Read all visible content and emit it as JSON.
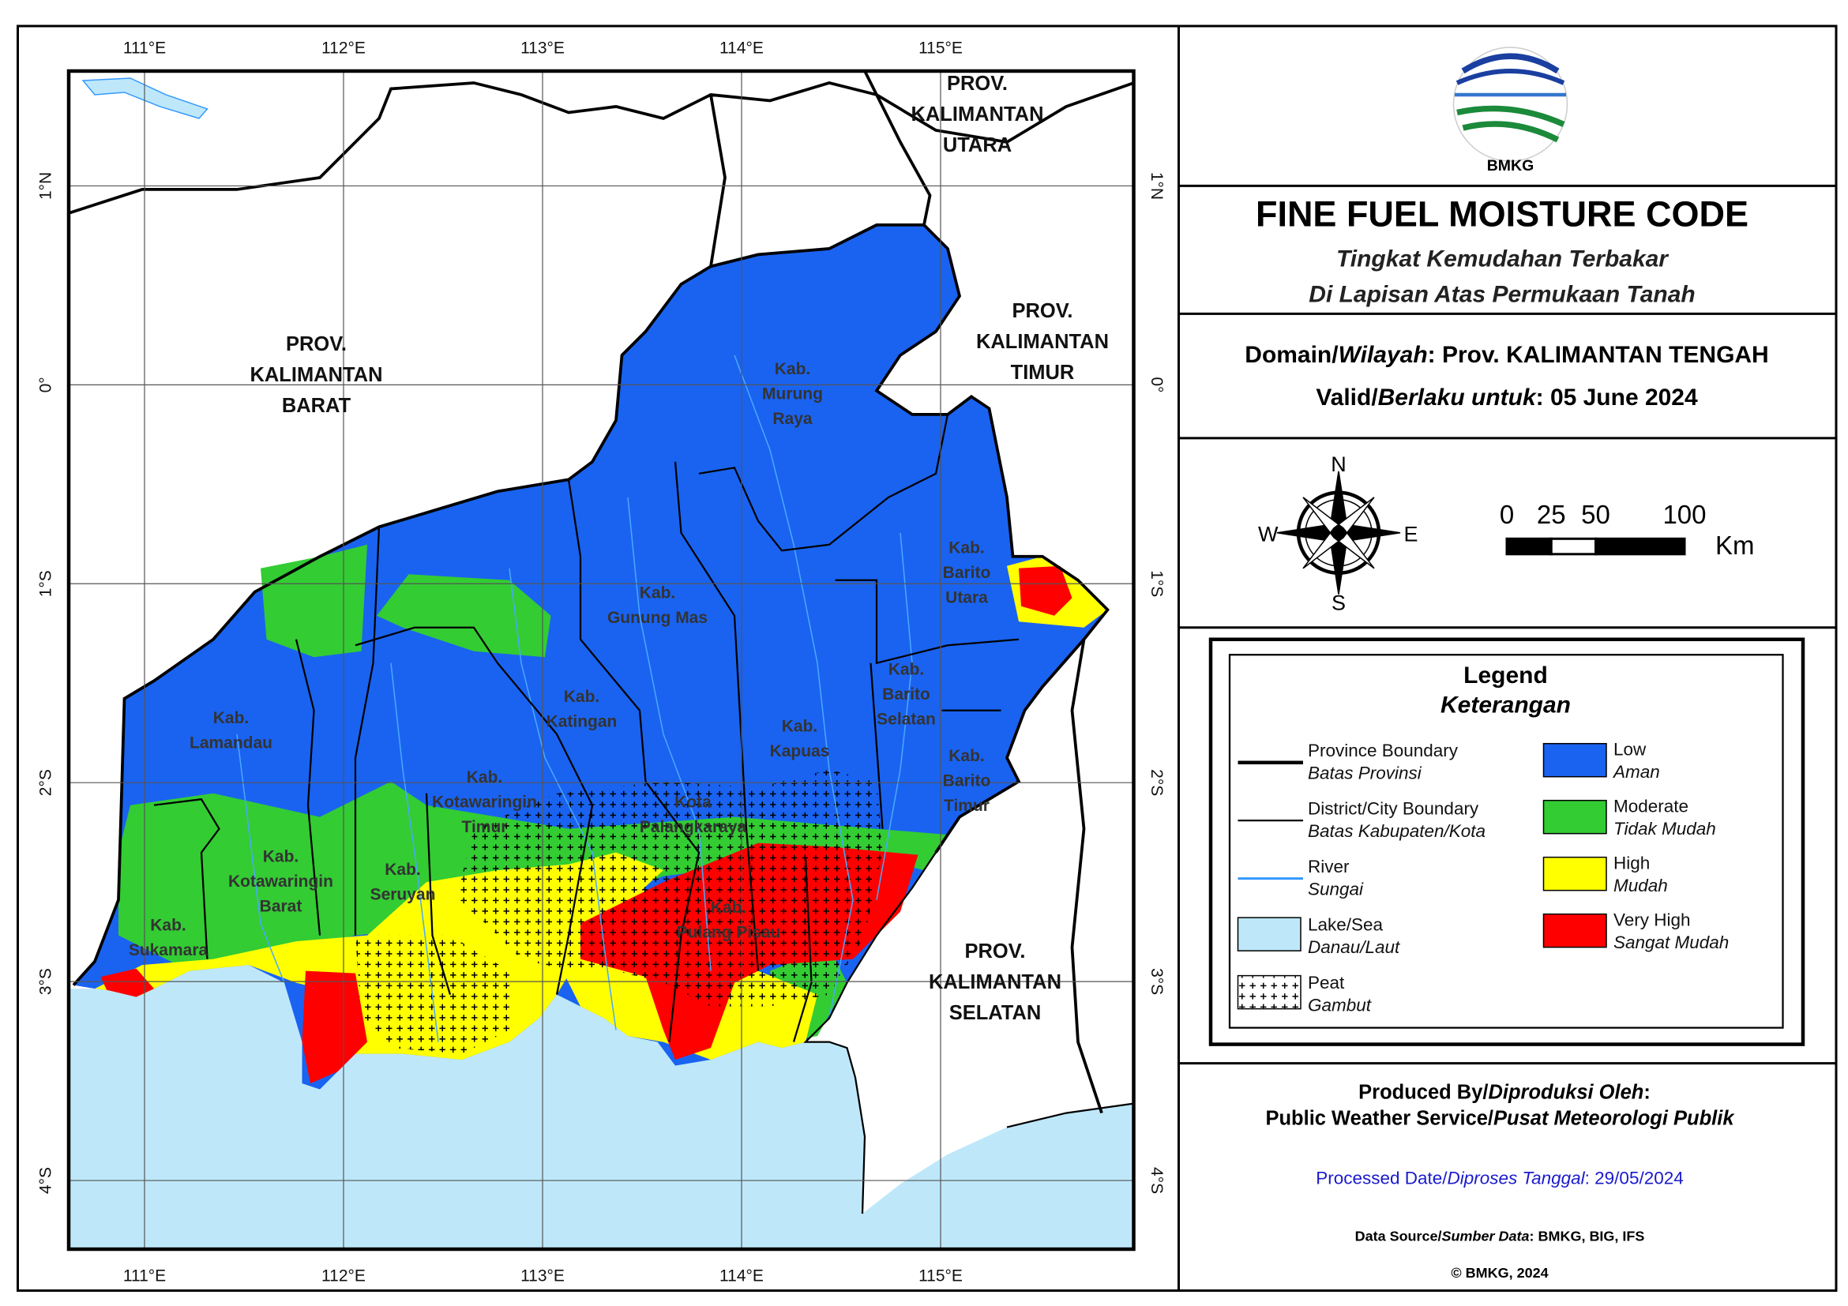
{
  "header": {
    "logo_text": "BMKG",
    "title": "FINE FUEL MOISTURE CODE",
    "subtitle_lines": [
      "Tingkat Kemudahan Terbakar",
      "Di Lapisan Atas Permukaan Tanah"
    ]
  },
  "domain": {
    "label": "Domain/",
    "label_italic": "Wilayah",
    "value": ": Prov. KALIMANTAN TENGAH"
  },
  "valid": {
    "label": "Valid/",
    "label_italic": "Berlaku untuk",
    "value": ": 05 June 2024"
  },
  "compass": {
    "n": "N",
    "e": "E",
    "s": "S",
    "w": "W"
  },
  "scale_bar": {
    "ticks": [
      0,
      25,
      50,
      100
    ],
    "unit": "Km"
  },
  "legend": {
    "title": "Legend",
    "subtitle": "Keterangan",
    "lines": [
      {
        "label": "Province Boundary",
        "label_id": "Batas Provinsi",
        "color": "#000000"
      },
      {
        "label": "District/City Boundary",
        "label_id": "Batas Kabupaten/Kota",
        "color": "#000000"
      },
      {
        "label": "River",
        "label_id": "Sungai",
        "color": "#3399ff"
      },
      {
        "label": "Lake/Sea",
        "label_id": "Danau/Laut",
        "color": "#bee8fa"
      },
      {
        "label": "Peat",
        "label_id": "Gambut",
        "color": "#ffffff"
      }
    ],
    "classes": [
      {
        "label": "Low",
        "label_id": "Aman",
        "color": "#1a63f0"
      },
      {
        "label": "Moderate",
        "label_id": "Tidak Mudah",
        "color": "#33cc33"
      },
      {
        "label": "High",
        "label_id": "Mudah",
        "color": "#ffff00"
      },
      {
        "label": "Very High",
        "label_id": "Sangat Mudah",
        "color": "#ff0000"
      }
    ]
  },
  "footer": {
    "produced_label": "Produced By/",
    "produced_label_italic": "Diproduksi Oleh",
    "produced_colon": ":",
    "producer": "Public Weather Service/",
    "producer_italic": "Pusat Meteorologi Publik",
    "processed_label": "Processed Date/",
    "processed_label_italic": "Diproses Tanggal",
    "processed_value": ": 29/05/2024",
    "source_label": "Data Source/",
    "source_label_italic": "Sumber Data",
    "source_value": ": BMKG, BIG, IFS",
    "copyright": "© BMKG, 2024"
  },
  "map": {
    "lon_labels": [
      "111°E",
      "112°E",
      "113°E",
      "114°E",
      "115°E"
    ],
    "lat_labels": [
      "1°N",
      "0°",
      "1°S",
      "2°S",
      "3°S",
      "4°S"
    ],
    "provinces": [
      [
        "PROV.",
        "KALIMANTAN",
        "BARAT"
      ],
      [
        "PROV.",
        "KALIMANTAN",
        "UTARA"
      ],
      [
        "PROV.",
        "KALIMANTAN",
        "TIMUR"
      ],
      [
        "PROV.",
        "KALIMANTAN",
        "SELATAN"
      ]
    ],
    "districts": [
      [
        "Kab.",
        "Murung",
        "Raya"
      ],
      [
        "Kab.",
        "Gunung Mas"
      ],
      [
        "Kab.",
        "Barito",
        "Utara"
      ],
      [
        "Kab.",
        "Katingan"
      ],
      [
        "Kab.",
        "Kapuas"
      ],
      [
        "Kab.",
        "Barito",
        "Selatan"
      ],
      [
        "Kab.",
        "Barito",
        "Timur"
      ],
      [
        "Kab.",
        "Lamandau"
      ],
      [
        "Kab.",
        "Kotawaringin",
        "Timur"
      ],
      [
        "Kota",
        "Palangkaraya"
      ],
      [
        "Kab.",
        "Kotawaringin",
        "Barat"
      ],
      [
        "Kab.",
        "Seruyan"
      ],
      [
        "Kab.",
        "Sukamara"
      ],
      [
        "Kab.",
        "Pulang Pisau"
      ]
    ]
  }
}
